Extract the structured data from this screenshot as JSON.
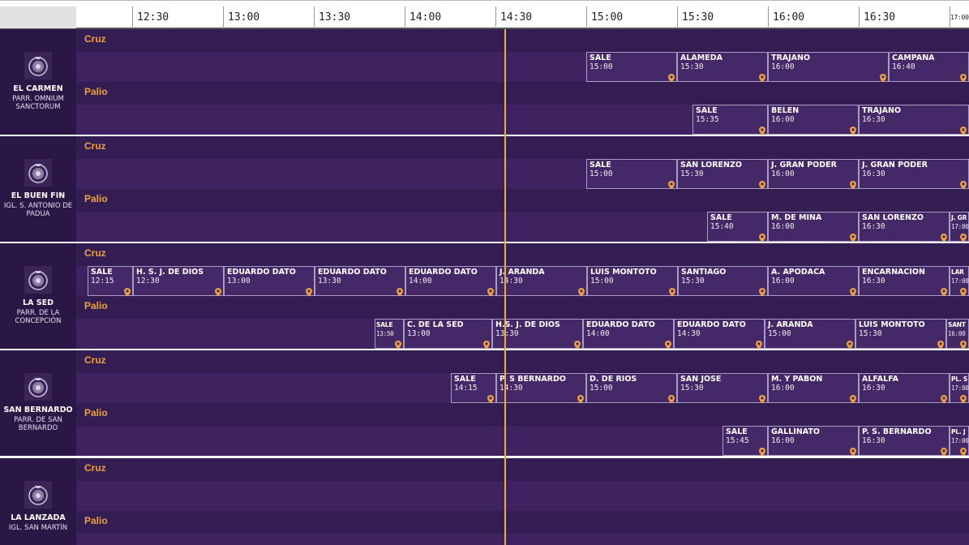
{
  "header": {
    "ticks": [
      "12:30",
      "13:00",
      "13:30",
      "14:00",
      "14:30",
      "15:00",
      "15:30",
      "16:00",
      "16:30",
      "17:00"
    ]
  },
  "labels": {
    "cruz": "Cruz",
    "palio": "Palio"
  },
  "colors": {
    "accent": "#f0a23a",
    "now_line": "#e8b030",
    "background": "#2e1a4a",
    "block": "#452868"
  },
  "groups": [
    {
      "name": "EL CARMEN",
      "church": "PARR. OMNIUM SANCTORUM",
      "cruz": [
        {
          "label": "SALE",
          "time": "15:00"
        },
        {
          "label": "ALAMEDA",
          "time": "15:30"
        },
        {
          "label": "TRAJANO",
          "time": "16:00"
        },
        {
          "label": "CAMPANA",
          "time": "16:40"
        }
      ],
      "palio": [
        {
          "label": "SALE",
          "time": "15:35"
        },
        {
          "label": "BELEN",
          "time": "16:00"
        },
        {
          "label": "TRAJANO",
          "time": "16:30"
        }
      ]
    },
    {
      "name": "EL BUEN FIN",
      "church": "IGL. S. ANTONIO DE PADUA",
      "cruz": [
        {
          "label": "SALE",
          "time": "15:00"
        },
        {
          "label": "SAN LORENZO",
          "time": "15:30"
        },
        {
          "label": "J. GRAN PODER",
          "time": "16:00"
        },
        {
          "label": "J. GRAN PODER",
          "time": "16:30"
        }
      ],
      "palio": [
        {
          "label": "SALE",
          "time": "15:40"
        },
        {
          "label": "M. DE MINA",
          "time": "16:00"
        },
        {
          "label": "SAN LORENZO",
          "time": "16:30"
        },
        {
          "label": "J. GR",
          "time": "17:00"
        }
      ]
    },
    {
      "name": "LA SED",
      "church": "PARR. DE LA CONCEPCIÓN",
      "cruz": [
        {
          "label": "SALE",
          "time": "12:15"
        },
        {
          "label": "H. S. J. DE DIOS",
          "time": "12:30"
        },
        {
          "label": "EDUARDO DATO",
          "time": "13:00"
        },
        {
          "label": "EDUARDO DATO",
          "time": "13:30"
        },
        {
          "label": "EDUARDO DATO",
          "time": "14:00"
        },
        {
          "label": "J. ARANDA",
          "time": "14:30"
        },
        {
          "label": "LUIS MONTOTO",
          "time": "15:00"
        },
        {
          "label": "SANTIAGO",
          "time": "15:30"
        },
        {
          "label": "A. APODACA",
          "time": "16:00"
        },
        {
          "label": "ENCARNACION",
          "time": "16:30"
        },
        {
          "label": "LAR",
          "time": "17:00"
        }
      ],
      "palio": [
        {
          "label": "SALE",
          "time": "13:50"
        },
        {
          "label": "C. DE LA SED",
          "time": "13:00"
        },
        {
          "label": "H.S. J. DE DIOS",
          "time": "13:30"
        },
        {
          "label": "EDUARDO DATO",
          "time": "14:00"
        },
        {
          "label": "EDUARDO DATO",
          "time": "14:30"
        },
        {
          "label": "J. ARANDA",
          "time": "15:00"
        },
        {
          "label": "LUIS MONTOTO",
          "time": "15:30"
        },
        {
          "label": "SANT",
          "time": "16:00"
        }
      ]
    },
    {
      "name": "SAN BERNARDO",
      "church": "PARR. DE SAN BERNARDO",
      "cruz": [
        {
          "label": "SALE",
          "time": "14:15"
        },
        {
          "label": "P. S BERNARDO",
          "time": "14:30"
        },
        {
          "label": "D. DE RIOS",
          "time": "15:00"
        },
        {
          "label": "SAN JOSE",
          "time": "15:30"
        },
        {
          "label": "M. Y PABON",
          "time": "16:00"
        },
        {
          "label": "ALFALFA",
          "time": "16:30"
        },
        {
          "label": "PL. S",
          "time": "17:00"
        }
      ],
      "palio": [
        {
          "label": "SALE",
          "time": "15:45"
        },
        {
          "label": "GALLINATO",
          "time": "16:00"
        },
        {
          "label": "P. S. BERNARDO",
          "time": "16:30"
        },
        {
          "label": "PL. J",
          "time": "17:00"
        }
      ]
    },
    {
      "name": "LA LANZADA",
      "church": "IGL. SAN MARTÍN",
      "cruz": [],
      "palio": []
    }
  ]
}
